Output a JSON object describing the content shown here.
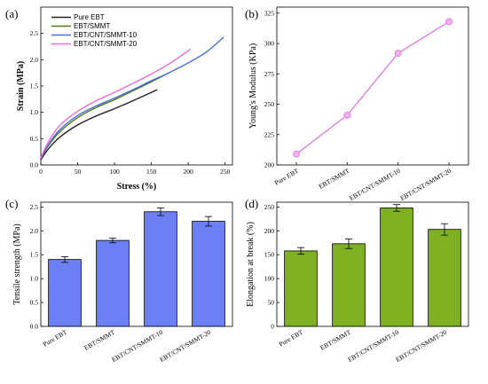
{
  "chart_data": [
    {
      "panel": "(a)",
      "type": "line",
      "xlabel": "Stress (%)",
      "ylabel": "Strain (MPa)",
      "xlim": [
        0,
        260
      ],
      "ylim": [
        0,
        3.0
      ],
      "xticks": [
        0,
        50,
        100,
        150,
        200,
        250
      ],
      "yticks": [
        0.0,
        0.5,
        1.0,
        1.5,
        2.0,
        2.5
      ],
      "ytick_labels": [
        "0.0",
        "0.5",
        "1.0",
        "1.5",
        "2.0",
        "2.5"
      ],
      "legend_position": "top-left",
      "series": [
        {
          "name": "Pure EBT",
          "color": "#222222",
          "points": [
            [
              0,
              0.1
            ],
            [
              10,
              0.3
            ],
            [
              25,
              0.52
            ],
            [
              50,
              0.76
            ],
            [
              75,
              0.93
            ],
            [
              100,
              1.07
            ],
            [
              125,
              1.22
            ],
            [
              158,
              1.43
            ]
          ]
        },
        {
          "name": "EBT/SMMT",
          "color": "#4f7a1c",
          "points": [
            [
              0,
              0.12
            ],
            [
              10,
              0.36
            ],
            [
              25,
              0.62
            ],
            [
              50,
              0.9
            ],
            [
              75,
              1.09
            ],
            [
              100,
              1.24
            ],
            [
              125,
              1.41
            ],
            [
              150,
              1.58
            ],
            [
              175,
              1.76
            ]
          ]
        },
        {
          "name": "EBT/CNT/SMMT-10",
          "color": "#4a6fd8",
          "points": [
            [
              0,
              0.12
            ],
            [
              10,
              0.38
            ],
            [
              25,
              0.66
            ],
            [
              50,
              0.94
            ],
            [
              75,
              1.12
            ],
            [
              100,
              1.27
            ],
            [
              125,
              1.43
            ],
            [
              150,
              1.6
            ],
            [
              175,
              1.76
            ],
            [
              200,
              1.94
            ],
            [
              225,
              2.15
            ],
            [
              248,
              2.43
            ]
          ]
        },
        {
          "name": "EBT/CNT/SMMT-20",
          "color": "#f06ad0",
          "points": [
            [
              0,
              0.14
            ],
            [
              10,
              0.43
            ],
            [
              25,
              0.74
            ],
            [
              50,
              1.02
            ],
            [
              75,
              1.22
            ],
            [
              100,
              1.38
            ],
            [
              125,
              1.55
            ],
            [
              150,
              1.73
            ],
            [
              175,
              1.93
            ],
            [
              203,
              2.2
            ]
          ]
        }
      ]
    },
    {
      "panel": "(b)",
      "type": "line",
      "xlabel": "",
      "ylabel": "Young's Modulus (KPa)",
      "ylim": [
        200,
        330
      ],
      "yticks": [
        200,
        225,
        250,
        275,
        300,
        325
      ],
      "categories": [
        "Pure EBT",
        "EBT/SMMT",
        "EBT/CNT/SMMT-10",
        "EBT/CNT/SMMT-20"
      ],
      "series": [
        {
          "color": "#e27be0",
          "values": [
            209,
            241,
            292,
            318
          ]
        }
      ]
    },
    {
      "panel": "(c)",
      "type": "bar",
      "xlabel": "",
      "ylabel": "Tensile strength (MPa)",
      "ylim": [
        0,
        2.6
      ],
      "yticks": [
        0.0,
        0.5,
        1.0,
        1.5,
        2.0,
        2.5
      ],
      "ytick_labels": [
        "0.0",
        "0.5",
        "1.0",
        "1.5",
        "2.0",
        "2.5"
      ],
      "categories": [
        "Pure EBT",
        "EBT/SMMT",
        "EBT/CNT/SMMT-10",
        "EBT/CNT/SMMT-20"
      ],
      "bar_color": "#6c7ff5",
      "values": [
        1.4,
        1.8,
        2.4,
        2.2
      ],
      "errors": [
        0.06,
        0.05,
        0.08,
        0.1
      ]
    },
    {
      "panel": "(d)",
      "type": "bar",
      "xlabel": "",
      "ylabel": "Elongation at break (%)",
      "ylim": [
        0,
        260
      ],
      "yticks": [
        0,
        50,
        100,
        150,
        200,
        250
      ],
      "categories": [
        "Pure EBT",
        "EBT/SMMT",
        "EBT/CNT/SMMT-10",
        "EBT/CNT/SMMT-20"
      ],
      "bar_color": "#7fb022",
      "values": [
        158,
        173,
        248,
        203
      ],
      "errors": [
        7,
        10,
        7,
        12
      ]
    }
  ]
}
